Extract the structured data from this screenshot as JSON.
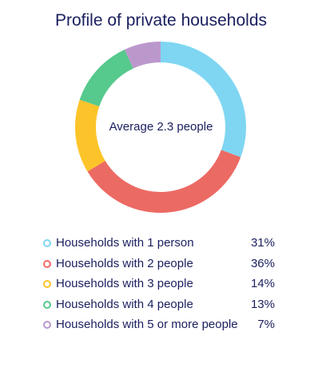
{
  "chart_data": {
    "type": "pie",
    "title": "Profile of private households",
    "center_label": "Average 2.3 people",
    "categories": [
      "Households with 1 person",
      "Households with 2 people",
      "Households with 3 people",
      "Households with 4 people",
      "Households with 5 or more people"
    ],
    "values": [
      31,
      36,
      14,
      13,
      7
    ],
    "value_labels": [
      "31%",
      "36%",
      "14%",
      "13%",
      "7%"
    ],
    "colors": [
      "#7fd6f2",
      "#ec6a64",
      "#fcc42a",
      "#56c98d",
      "#bb98cc"
    ],
    "legend_position": "bottom"
  }
}
